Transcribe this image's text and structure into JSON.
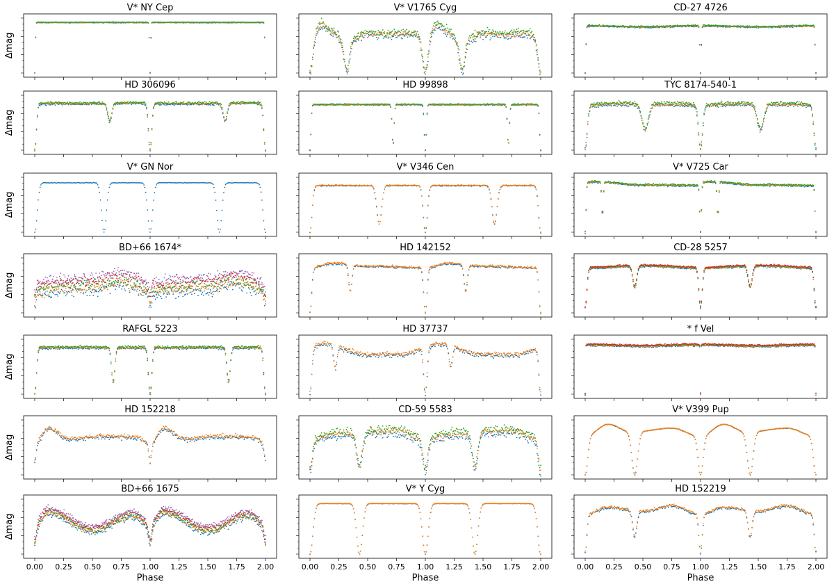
{
  "figure": {
    "x_label": "Phase",
    "y_label": "Δmag",
    "x_tick_labels": [
      "0.00",
      "0.25",
      "0.50",
      "0.75",
      "1.00",
      "1.25",
      "1.50",
      "1.75",
      "2.00"
    ]
  },
  "chart_data": {
    "type": "scatter",
    "xlabel": "Phase",
    "ylabel": "Δmag",
    "xlim": [
      0,
      2
    ],
    "x_ticks": [
      0,
      0.25,
      0.5,
      0.75,
      1.0,
      1.25,
      1.5,
      1.75,
      2.0
    ],
    "y_tick_labels_shown": false,
    "y_axis_inverted": true,
    "layout": "7 rows x 3 columns, shared phase axis",
    "series_colors": [
      "#1f77b4",
      "#ff7f0e",
      "#2ca02c",
      "#d62728",
      "#9467bd"
    ],
    "panels": [
      {
        "title": "V* NY Cep",
        "n_series": 3,
        "profile": {
          "plateau": [
            [
              0,
              0.92
            ],
            [
              0.5,
              0.92
            ],
            [
              1,
              0.92
            ]
          ],
          "dips": [
            {
              "c": 0.0,
              "d": 1.0,
              "w": 0.007
            }
          ]
        },
        "scatter": 0.006
      },
      {
        "title": "V* V1765 Cyg",
        "n_series": 3,
        "profile": {
          "plateau": [
            [
              0,
              0.55
            ],
            [
              0.1,
              0.88
            ],
            [
              0.2,
              0.75
            ],
            [
              0.3,
              0.55
            ],
            [
              0.5,
              0.72
            ],
            [
              0.7,
              0.7
            ],
            [
              0.9,
              0.72
            ],
            [
              1,
              0.55
            ]
          ],
          "dips": [
            {
              "c": 0.0,
              "d": 1.0,
              "w": 0.03
            },
            {
              "c": 0.32,
              "d": 0.95,
              "w": 0.03
            }
          ]
        },
        "scatter": 0.06
      },
      {
        "title": "CD-27 4726",
        "n_series": 3,
        "profile": {
          "plateau": [
            [
              0,
              0.86
            ],
            [
              0.5,
              0.84
            ],
            [
              1,
              0.86
            ]
          ],
          "dips": [
            {
              "c": 0.0,
              "d": 1.0,
              "w": 0.008
            }
          ]
        },
        "scatter": 0.012
      },
      {
        "title": "HD 306096",
        "n_series": 3,
        "profile": {
          "plateau": [
            [
              0,
              0.85
            ],
            [
              0.5,
              0.85
            ],
            [
              0.9,
              0.86
            ],
            [
              1,
              0.85
            ]
          ],
          "dips": [
            {
              "c": 0.0,
              "d": 1.0,
              "w": 0.02
            },
            {
              "c": 0.65,
              "d": 0.38,
              "w": 0.025
            }
          ]
        },
        "scatter": 0.02
      },
      {
        "title": "HD 99898",
        "n_series": 3,
        "profile": {
          "plateau": [
            [
              0,
              0.83
            ],
            [
              0.5,
              0.83
            ],
            [
              1,
              0.83
            ]
          ],
          "dips": [
            {
              "c": 0.0,
              "d": 1.0,
              "w": 0.012
            },
            {
              "c": 0.72,
              "d": 0.9,
              "w": 0.012
            }
          ]
        },
        "scatter": 0.01
      },
      {
        "title": "TYC 8174-540-1",
        "n_series": 3,
        "profile": {
          "plateau": [
            [
              0,
              0.82
            ],
            [
              0.25,
              0.84
            ],
            [
              0.75,
              0.84
            ],
            [
              1,
              0.82
            ]
          ],
          "dips": [
            {
              "c": 0.0,
              "d": 0.95,
              "w": 0.025
            },
            {
              "c": 0.52,
              "d": 0.55,
              "w": 0.04
            }
          ]
        },
        "scatter": 0.03
      },
      {
        "title": "V* GN Nor",
        "n_series": 1,
        "profile": {
          "plateau": [
            [
              0,
              0.9
            ],
            [
              0.5,
              0.9
            ],
            [
              1,
              0.9
            ]
          ],
          "dips": [
            {
              "c": 0.0,
              "d": 1.0,
              "w": 0.03
            },
            {
              "c": 0.6,
              "d": 1.0,
              "w": 0.03
            }
          ]
        },
        "scatter": 0.005
      },
      {
        "title": "V* V346 Cen",
        "n_series": 2,
        "profile": {
          "plateau": [
            [
              0,
              0.85
            ],
            [
              0.5,
              0.85
            ],
            [
              1,
              0.85
            ]
          ],
          "dips": [
            {
              "c": 0.0,
              "d": 1.0,
              "w": 0.025
            },
            {
              "c": 0.6,
              "d": 0.82,
              "w": 0.03
            }
          ]
        },
        "scatter": 0.01
      },
      {
        "title": "V* V725 Car",
        "n_series": 3,
        "profile": {
          "plateau": [
            [
              0,
              0.9
            ],
            [
              0.08,
              0.92
            ],
            [
              0.5,
              0.86
            ],
            [
              1,
              0.85
            ]
          ],
          "dips": [
            {
              "c": 0.0,
              "d": 1.0,
              "w": 0.01
            },
            {
              "c": 0.15,
              "d": 0.7,
              "w": 0.01
            }
          ]
        },
        "scatter": 0.015
      },
      {
        "title": "BD+66 1674*",
        "n_series": 5,
        "profile": {
          "plateau": [
            [
              0,
              0.45
            ],
            [
              0.25,
              0.5
            ],
            [
              0.5,
              0.52
            ],
            [
              0.75,
              0.62
            ],
            [
              1,
              0.45
            ]
          ],
          "dips": [
            {
              "c": 0.0,
              "d": 0.45,
              "w": 0.015
            }
          ]
        },
        "scatter": 0.1
      },
      {
        "title": "HD 142152",
        "n_series": 2,
        "profile": {
          "plateau": [
            [
              0,
              0.82
            ],
            [
              0.2,
              0.9
            ],
            [
              0.5,
              0.85
            ],
            [
              1,
              0.82
            ]
          ],
          "dips": [
            {
              "c": 0.0,
              "d": 1.0,
              "w": 0.02
            },
            {
              "c": 0.35,
              "d": 0.55,
              "w": 0.02
            }
          ]
        },
        "scatter": 0.02
      },
      {
        "title": "CD-28 5257",
        "n_series": 4,
        "profile": {
          "plateau": [
            [
              0,
              0.82
            ],
            [
              0.5,
              0.86
            ],
            [
              1,
              0.82
            ]
          ],
          "dips": [
            {
              "c": 0.0,
              "d": 0.88,
              "w": 0.02
            },
            {
              "c": 0.43,
              "d": 0.45,
              "w": 0.025
            }
          ]
        },
        "scatter": 0.015
      },
      {
        "title": "RAFGL 5223",
        "n_series": 3,
        "profile": {
          "plateau": [
            [
              0,
              0.85
            ],
            [
              0.5,
              0.85
            ],
            [
              1,
              0.85
            ]
          ],
          "dips": [
            {
              "c": 0.0,
              "d": 1.0,
              "w": 0.02
            },
            {
              "c": 0.68,
              "d": 0.75,
              "w": 0.02
            }
          ]
        },
        "scatter": 0.02
      },
      {
        "title": "HD 37737",
        "n_series": 2,
        "profile": {
          "plateau": [
            [
              0,
              0.82
            ],
            [
              0.1,
              0.92
            ],
            [
              0.5,
              0.72
            ],
            [
              0.8,
              0.72
            ],
            [
              1,
              0.82
            ]
          ],
          "dips": [
            {
              "c": 0.0,
              "d": 1.0,
              "w": 0.02
            },
            {
              "c": 0.22,
              "d": 0.45,
              "w": 0.02
            }
          ]
        },
        "scatter": 0.04
      },
      {
        "title": "* f Vel",
        "n_series": 4,
        "profile": {
          "plateau": [
            [
              0,
              0.9
            ],
            [
              0.5,
              0.88
            ],
            [
              1,
              0.9
            ]
          ],
          "dips": [
            {
              "c": 0.0,
              "d": 1.0,
              "w": 0.004
            }
          ]
        },
        "scatter": 0.015
      },
      {
        "title": "HD 152218",
        "n_series": 2,
        "profile": {
          "plateau": [
            [
              0,
              0.55
            ],
            [
              0.12,
              0.85
            ],
            [
              0.3,
              0.65
            ],
            [
              0.6,
              0.7
            ],
            [
              0.9,
              0.68
            ],
            [
              1,
              0.55
            ]
          ],
          "dips": [
            {
              "c": 0.0,
              "d": 0.55,
              "w": 0.015
            }
          ]
        },
        "scatter": 0.04
      },
      {
        "title": "CD-59 5583",
        "n_series": 3,
        "profile": {
          "plateau": [
            [
              0,
              0.65
            ],
            [
              0.25,
              0.75
            ],
            [
              0.75,
              0.8
            ],
            [
              1,
              0.65
            ]
          ],
          "dips": [
            {
              "c": 0.0,
              "d": 0.9,
              "w": 0.03
            },
            {
              "c": 0.43,
              "d": 0.8,
              "w": 0.035
            }
          ]
        },
        "scatter": 0.07
      },
      {
        "title": "V* V399 Pup",
        "n_series": 2,
        "profile": {
          "plateau": [
            [
              0,
              0.7
            ],
            [
              0.2,
              0.92
            ],
            [
              0.4,
              0.78
            ],
            [
              0.75,
              0.85
            ],
            [
              1,
              0.7
            ]
          ],
          "dips": [
            {
              "c": 0.0,
              "d": 1.0,
              "w": 0.03
            },
            {
              "c": 0.43,
              "d": 1.0,
              "w": 0.035
            }
          ]
        },
        "scatter": 0.005
      },
      {
        "title": "BD+66 1675",
        "n_series": 5,
        "profile": {
          "plateau": [
            [
              0,
              0.55
            ],
            [
              0.12,
              0.78
            ],
            [
              0.5,
              0.45
            ],
            [
              0.85,
              0.72
            ],
            [
              1,
              0.55
            ]
          ],
          "dips": [
            {
              "c": 0.0,
              "d": 0.6,
              "w": 0.02
            }
          ]
        },
        "scatter": 0.05
      },
      {
        "title": "V* Y Cyg",
        "n_series": 2,
        "profile": {
          "plateau": [
            [
              0,
              0.92
            ],
            [
              0.5,
              0.92
            ],
            [
              1,
              0.92
            ]
          ],
          "dips": [
            {
              "c": 0.0,
              "d": 1.0,
              "w": 0.035
            },
            {
              "c": 0.43,
              "d": 1.0,
              "w": 0.035
            }
          ]
        },
        "scatter": 0.003
      },
      {
        "title": "HD 152219",
        "n_series": 2,
        "profile": {
          "plateau": [
            [
              0,
              0.72
            ],
            [
              0.2,
              0.85
            ],
            [
              0.5,
              0.78
            ],
            [
              0.75,
              0.88
            ],
            [
              1,
              0.72
            ]
          ],
          "dips": [
            {
              "c": 0.0,
              "d": 0.95,
              "w": 0.02
            },
            {
              "c": 0.43,
              "d": 0.6,
              "w": 0.025
            }
          ]
        },
        "scatter": 0.025
      }
    ]
  }
}
